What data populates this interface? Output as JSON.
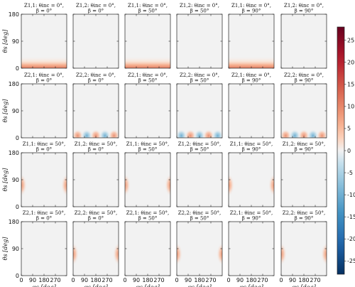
{
  "chart_data": {
    "type": "heatmap",
    "colormap": "diverging blue-white-red (RdBu_r)",
    "colorbar": {
      "range": [
        -28,
        28
      ],
      "ticks": [
        25,
        20,
        15,
        10,
        5,
        0,
        -5,
        -10,
        -15,
        -20,
        -25
      ]
    },
    "axes": {
      "xlabel": "φs [deg]",
      "ylabel": "θs [deg]",
      "xticks": [
        "0",
        "90",
        "180",
        "270"
      ],
      "yticks": [
        "180",
        "90",
        "0"
      ]
    },
    "panels": [
      {
        "t1": "Z1,1: θinc = 0°,",
        "t2": "β = 0°",
        "pattern": "bottom_band",
        "amp": 10
      },
      {
        "t1": "Z1,2: θinc = 0°,",
        "t2": "β = 0°",
        "pattern": "none",
        "amp": 0
      },
      {
        "t1": "Z1,1: θinc = 0°,",
        "t2": "β = 50°",
        "pattern": "bottom_band",
        "amp": 10
      },
      {
        "t1": "Z1,2: θinc = 0°,",
        "t2": "β = 50°",
        "pattern": "none",
        "amp": 0
      },
      {
        "t1": "Z1,1: θinc = 0°,",
        "t2": "β = 90°",
        "pattern": "bottom_band",
        "amp": 10
      },
      {
        "t1": "Z1,2: θinc = 0°,",
        "t2": "β = 90°",
        "pattern": "none",
        "amp": 0
      },
      {
        "t1": "Z2,1: θinc = 0°,",
        "t2": "β = 0°",
        "pattern": "none",
        "amp": 0
      },
      {
        "t1": "Z2,2: θinc = 0°,",
        "t2": "β = 0°",
        "pattern": "wave",
        "amp": 10
      },
      {
        "t1": "Z2,1: θinc = 0°,",
        "t2": "β = 50°",
        "pattern": "none",
        "amp": 0
      },
      {
        "t1": "Z2,2: θinc = 0°,",
        "t2": "β = 50°",
        "pattern": "wave_shift",
        "amp": 10
      },
      {
        "t1": "Z2,1: θinc = 0°,",
        "t2": "β = 90°",
        "pattern": "none",
        "amp": 0
      },
      {
        "t1": "Z2,2: θinc = 0°,",
        "t2": "β = 90°",
        "pattern": "wave_neg",
        "amp": 10
      },
      {
        "t1": "Z1,1: θinc = 50°,",
        "t2": "β = 0°",
        "pattern": "side_lobes",
        "amp": 7
      },
      {
        "t1": "Z1,2: θinc = 50°,",
        "t2": "β = 0°",
        "pattern": "none",
        "amp": 0
      },
      {
        "t1": "Z1,1: θinc = 50°,",
        "t2": "β = 50°",
        "pattern": "side_lobes",
        "amp": 7
      },
      {
        "t1": "Z1,2: θinc = 50°,",
        "t2": "β = 50°",
        "pattern": "none",
        "amp": 0
      },
      {
        "t1": "Z1,1: θinc = 50°,",
        "t2": "β = 90°",
        "pattern": "side_lobes",
        "amp": 7
      },
      {
        "t1": "Z1,2: θinc = 50°,",
        "t2": "β = 90°",
        "pattern": "none",
        "amp": 0
      },
      {
        "t1": "Z2,1: θinc = 50°,",
        "t2": "β = 0°",
        "pattern": "none",
        "amp": 0
      },
      {
        "t1": "Z2,2: θinc = 50°,",
        "t2": "β = 0°",
        "pattern": "side_lobes",
        "amp": 7
      },
      {
        "t1": "Z2,1: θinc = 50°,",
        "t2": "β = 50°",
        "pattern": "none",
        "amp": 0
      },
      {
        "t1": "Z2,2: θinc = 50°,",
        "t2": "β = 50°",
        "pattern": "side_lobes",
        "amp": 7
      },
      {
        "t1": "Z2,1: θinc = 50°,",
        "t2": "β = 90°",
        "pattern": "none",
        "amp": 0
      },
      {
        "t1": "Z2,2: θinc = 50°,",
        "t2": "β = 90°",
        "pattern": "side_lobes",
        "amp": 7
      }
    ]
  }
}
